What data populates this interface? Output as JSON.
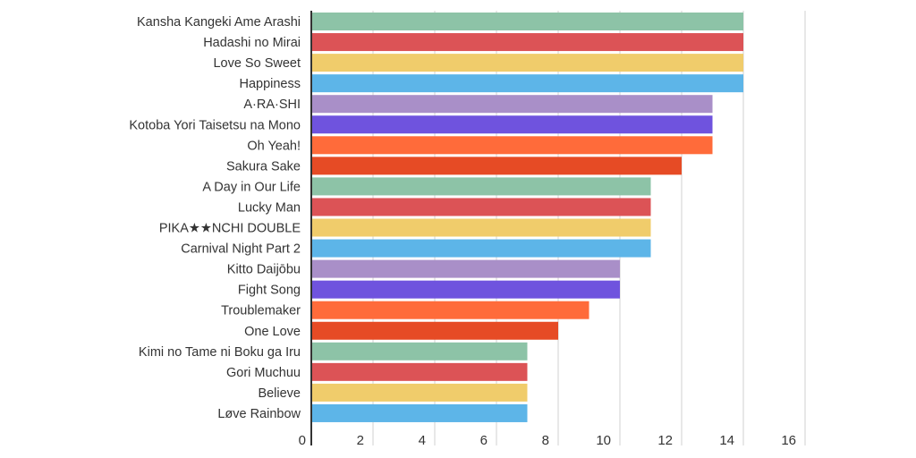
{
  "chart_data": {
    "type": "bar",
    "orientation": "horizontal",
    "title": "",
    "xlabel": "",
    "ylabel": "",
    "xlim": [
      0,
      16
    ],
    "x_ticks": [
      0,
      2,
      4,
      6,
      8,
      10,
      12,
      14,
      16
    ],
    "grid": true,
    "legend": "none",
    "categories": [
      "Kansha Kangeki Ame Arashi",
      "Hadashi no Mirai",
      "Love So Sweet",
      "Happiness",
      "A·RA·SHI",
      "Kotoba Yori Taisetsu na Mono",
      "Oh Yeah!",
      "Sakura Sake",
      "A Day in Our Life",
      "Lucky Man",
      "PIKA★★NCHI DOUBLE",
      "Carnival Night Part 2",
      "Kitto Daijōbu",
      "Fight Song",
      "Troublemaker",
      "One Love",
      "Kimi no Tame ni Boku ga Iru",
      "Gori Muchuu",
      "Believe",
      "Løve Rainbow"
    ],
    "values": [
      14,
      14,
      14,
      14,
      13,
      13,
      13,
      12,
      11,
      11,
      11,
      11,
      10,
      10,
      9,
      8,
      7,
      7,
      7,
      7
    ],
    "colors": [
      "#8dc3a7",
      "#dc5356",
      "#f0cc6b",
      "#5db5e8",
      "#a98fc8",
      "#6f53de",
      "#ff6b3a",
      "#e64b25"
    ]
  }
}
